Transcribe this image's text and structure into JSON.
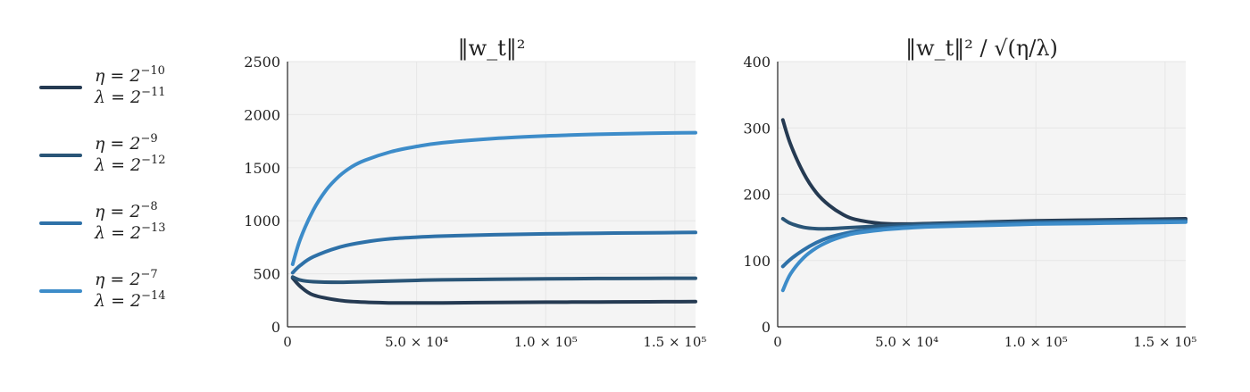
{
  "legend": [
    {
      "eta": "η = 2",
      "eta_exp": "−10",
      "lambda": "λ = 2",
      "lambda_exp": "−11",
      "color": "#253a52"
    },
    {
      "eta": "η = 2",
      "eta_exp": "−9",
      "lambda": "λ = 2",
      "lambda_exp": "−12",
      "color": "#2a5577"
    },
    {
      "eta": "η = 2",
      "eta_exp": "−8",
      "lambda": "λ = 2",
      "lambda_exp": "−13",
      "color": "#2e71a8"
    },
    {
      "eta": "η = 2",
      "eta_exp": "−7",
      "lambda": "λ = 2",
      "lambda_exp": "−14",
      "color": "#3d8cc9"
    }
  ],
  "chart_data": [
    {
      "type": "line",
      "title": "‖w_t‖²",
      "xlabel": "",
      "ylabel": "",
      "xlim": [
        0,
        158000
      ],
      "ylim": [
        0,
        2500
      ],
      "xticks": [
        {
          "v": 0,
          "label": "0"
        },
        {
          "v": 50000,
          "label": "5.0 × 10⁴"
        },
        {
          "v": 100000,
          "label": "1.0 × 10⁵"
        },
        {
          "v": 150000,
          "label": "1.5 × 10⁵"
        }
      ],
      "yticks": [
        0,
        500,
        1000,
        1500,
        2000,
        2500
      ],
      "grid": true,
      "series": [
        {
          "x": [
            2000,
            5000,
            10000,
            20000,
            30000,
            40000,
            50000,
            60000,
            80000,
            100000,
            120000,
            140000,
            158000
          ],
          "y": [
            460,
            380,
            300,
            250,
            232,
            226,
            225,
            226,
            229,
            232,
            234,
            236,
            237
          ]
        },
        {
          "x": [
            2000,
            5000,
            10000,
            20000,
            30000,
            40000,
            50000,
            60000,
            80000,
            100000,
            120000,
            140000,
            158000
          ],
          "y": [
            470,
            440,
            425,
            420,
            425,
            432,
            438,
            443,
            448,
            452,
            455,
            457,
            458
          ]
        },
        {
          "x": [
            2000,
            5000,
            10000,
            20000,
            30000,
            40000,
            50000,
            60000,
            80000,
            100000,
            120000,
            140000,
            158000
          ],
          "y": [
            510,
            580,
            660,
            750,
            800,
            830,
            845,
            855,
            868,
            876,
            882,
            886,
            890
          ]
        },
        {
          "x": [
            2000,
            5000,
            10000,
            15000,
            20000,
            25000,
            30000,
            40000,
            50000,
            60000,
            80000,
            100000,
            120000,
            140000,
            158000
          ],
          "y": [
            590,
            830,
            1100,
            1290,
            1420,
            1510,
            1570,
            1650,
            1700,
            1735,
            1775,
            1800,
            1815,
            1825,
            1830
          ]
        }
      ]
    },
    {
      "type": "line",
      "title": "‖w_t‖² / √(η/λ)",
      "xlabel": "",
      "ylabel": "",
      "xlim": [
        0,
        158000
      ],
      "ylim": [
        0,
        400
      ],
      "xticks": [
        {
          "v": 0,
          "label": "0"
        },
        {
          "v": 50000,
          "label": "5.0 × 10⁴"
        },
        {
          "v": 100000,
          "label": "1.0 × 10⁵"
        },
        {
          "v": 150000,
          "label": "1.5 × 10⁵"
        }
      ],
      "yticks": [
        0,
        100,
        200,
        300,
        400
      ],
      "grid": true,
      "series": [
        {
          "x": [
            2000,
            5000,
            10000,
            15000,
            20000,
            25000,
            30000,
            40000,
            50000,
            60000,
            80000,
            100000,
            120000,
            140000,
            158000
          ],
          "y": [
            312,
            275,
            232,
            202,
            183,
            170,
            162,
            156,
            155,
            156,
            158,
            160,
            161,
            162,
            163
          ]
        },
        {
          "x": [
            2000,
            5000,
            10000,
            15000,
            20000,
            25000,
            30000,
            40000,
            50000,
            60000,
            80000,
            100000,
            120000,
            140000,
            158000
          ],
          "y": [
            163,
            156,
            150,
            148,
            148,
            149,
            150,
            152,
            154,
            155,
            157,
            158,
            159,
            160,
            161
          ]
        },
        {
          "x": [
            2000,
            5000,
            10000,
            15000,
            20000,
            25000,
            30000,
            40000,
            50000,
            60000,
            80000,
            100000,
            120000,
            140000,
            158000
          ],
          "y": [
            91,
            102,
            116,
            127,
            135,
            140,
            144,
            148,
            151,
            153,
            155,
            157,
            158,
            159,
            159
          ]
        },
        {
          "x": [
            2000,
            5000,
            10000,
            15000,
            20000,
            25000,
            30000,
            40000,
            50000,
            60000,
            80000,
            100000,
            120000,
            140000,
            158000
          ],
          "y": [
            55,
            80,
            104,
            119,
            129,
            136,
            141,
            146,
            149,
            151,
            153,
            155,
            156,
            157,
            158
          ]
        }
      ]
    }
  ]
}
